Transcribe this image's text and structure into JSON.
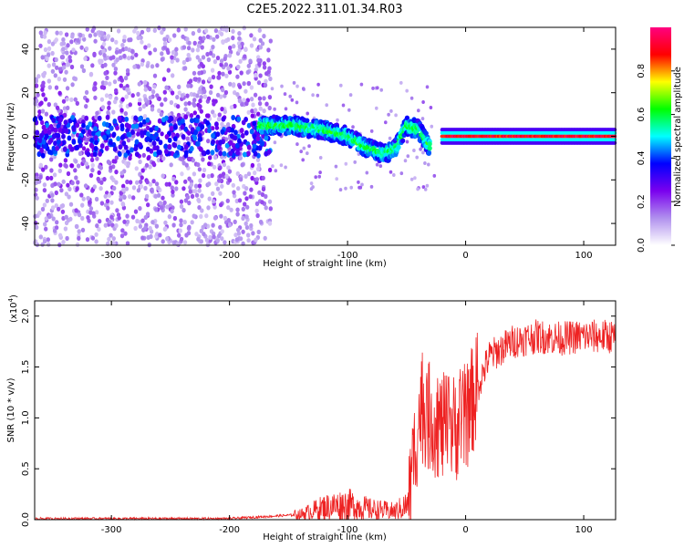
{
  "title": "C2E5.2022.311.01.34.R03",
  "chart_data": [
    {
      "type": "heatmap",
      "xlabel": "Height of straight line (km)",
      "ylabel": "Frequency (Hz)",
      "xlim": [
        -365,
        127
      ],
      "ylim": [
        -50,
        50
      ],
      "xticks": [
        -300,
        -200,
        -100,
        0,
        100
      ],
      "yticks": [
        -40,
        -20,
        0,
        20,
        40
      ],
      "colorbar": {
        "label": "Normalized spectral amplitude",
        "range": [
          0.0,
          1.0
        ],
        "ticks": [
          "0.0",
          "0.2",
          "0.4",
          "0.6",
          "0.8"
        ],
        "colors": [
          "#ffffff",
          "#b090ee",
          "#7a00ee",
          "#0000ff",
          "#00ffff",
          "#00ff00",
          "#ffff00",
          "#ff0000",
          "#ff0080"
        ]
      },
      "features": {
        "noise_region_x": [
          -365,
          -165
        ],
        "dispersive_trace": [
          [
            -175,
            5
          ],
          [
            -150,
            5
          ],
          [
            -120,
            3
          ],
          [
            -100,
            0
          ],
          [
            -85,
            -5
          ],
          [
            -70,
            -8
          ],
          [
            -60,
            -6
          ],
          [
            -50,
            5
          ],
          [
            -40,
            3
          ],
          [
            -30,
            -5
          ]
        ],
        "steady_carrier": {
          "x_range": [
            -20,
            127
          ],
          "frequency": 0,
          "amplitude": 0.9
        }
      }
    },
    {
      "type": "line",
      "xlabel": "Height of straight line (km)",
      "ylabel": "SNR (10 * v/v)",
      "multiplier_label": "(x10",
      "multiplier_exp": "4",
      "multiplier_close": ")",
      "xlim": [
        -365,
        127
      ],
      "ylim": [
        0,
        2.15
      ],
      "xticks": [
        -300,
        -200,
        -100,
        0,
        100
      ],
      "yticks": [
        "0.0",
        "0.5",
        "1.0",
        "1.5",
        "2.0"
      ],
      "series": [
        {
          "color": "#ee2222",
          "trend": [
            [
              -365,
              0.01
            ],
            [
              -200,
              0.01
            ],
            [
              -140,
              0.05
            ],
            [
              -120,
              0.12
            ],
            [
              -100,
              0.15
            ],
            [
              -80,
              0.1
            ],
            [
              -60,
              0.08
            ],
            [
              -48,
              0.15
            ],
            [
              -42,
              0.8
            ],
            [
              -38,
              1.1
            ],
            [
              -30,
              1.0
            ],
            [
              -20,
              0.9
            ],
            [
              -10,
              0.9
            ],
            [
              0,
              1.0
            ],
            [
              10,
              1.3
            ],
            [
              20,
              1.6
            ],
            [
              40,
              1.75
            ],
            [
              60,
              1.8
            ],
            [
              80,
              1.78
            ],
            [
              100,
              1.8
            ],
            [
              127,
              1.8
            ]
          ]
        }
      ]
    }
  ]
}
